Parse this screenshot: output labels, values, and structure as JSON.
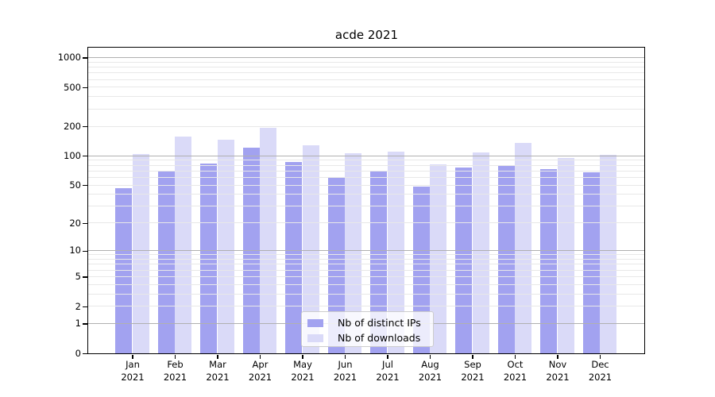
{
  "chart_data": {
    "type": "bar",
    "title": "acde 2021",
    "yscale": "log1p",
    "ylim": [
      0,
      1260
    ],
    "y_ticks": [
      0,
      1,
      2,
      5,
      10,
      20,
      50,
      100,
      200,
      500,
      1000
    ],
    "grid": {
      "major_lines": [
        1,
        10,
        100,
        1000
      ],
      "minor_multiples": [
        2,
        3,
        4,
        5,
        6,
        7,
        8,
        9
      ],
      "minor_decades": [
        1,
        10,
        100
      ]
    },
    "categories": [
      {
        "month": "Jan",
        "year": "2021"
      },
      {
        "month": "Feb",
        "year": "2021"
      },
      {
        "month": "Mar",
        "year": "2021"
      },
      {
        "month": "Apr",
        "year": "2021"
      },
      {
        "month": "May",
        "year": "2021"
      },
      {
        "month": "Jun",
        "year": "2021"
      },
      {
        "month": "Jul",
        "year": "2021"
      },
      {
        "month": "Aug",
        "year": "2021"
      },
      {
        "month": "Sep",
        "year": "2021"
      },
      {
        "month": "Oct",
        "year": "2021"
      },
      {
        "month": "Nov",
        "year": "2021"
      },
      {
        "month": "Dec",
        "year": "2021"
      }
    ],
    "series": [
      {
        "name": "Nb of distinct IPs",
        "color": "#a2a2f0",
        "values": [
          46,
          70,
          83,
          120,
          87,
          60,
          70,
          48,
          76,
          80,
          73,
          68
        ]
      },
      {
        "name": "Nb of downloads",
        "color": "#dadaf8",
        "values": [
          105,
          158,
          145,
          192,
          129,
          106,
          110,
          81,
          108,
          136,
          95,
          103
        ]
      }
    ],
    "legend": {
      "position": "lower-center"
    },
    "colors": {
      "major_grid": "#b0b0b0",
      "minor_grid": "#e8e8e8",
      "axis": "#000000",
      "legend_border": "#cccccc",
      "text": "#000000"
    }
  }
}
